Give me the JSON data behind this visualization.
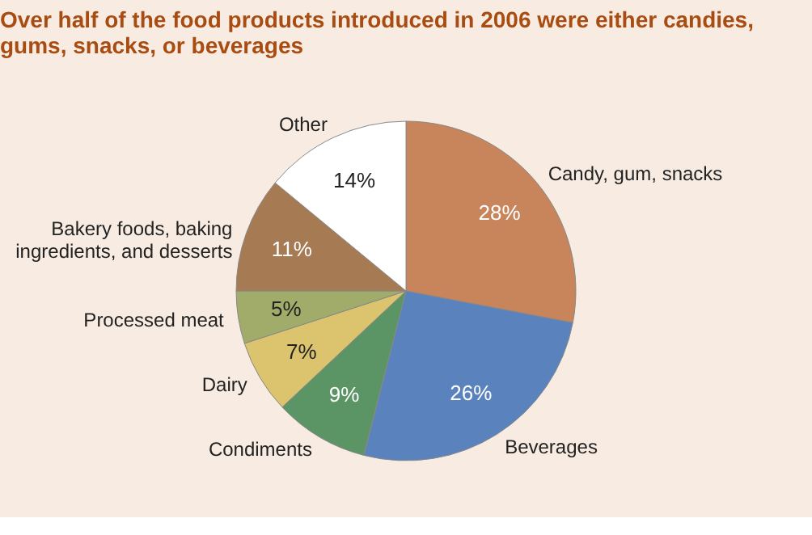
{
  "chart_data": {
    "type": "pie",
    "title": "Over half of the food products introduced in 2006 were either candies, gums, snacks, or beverages",
    "categories": [
      "Candy, gum, snacks",
      "Beverages",
      "Condiments",
      "Dairy",
      "Processed meat",
      "Bakery foods, baking ingredients, and desserts",
      "Other"
    ],
    "values": [
      28,
      26,
      9,
      7,
      5,
      11,
      14
    ],
    "value_labels": [
      "28%",
      "26%",
      "9%",
      "7%",
      "5%",
      "11%",
      "14%"
    ],
    "colors": [
      "#c8845a",
      "#5a83bd",
      "#5b9465",
      "#dcc36e",
      "#a2ac6a",
      "#a67a52",
      "#ffffff"
    ]
  }
}
